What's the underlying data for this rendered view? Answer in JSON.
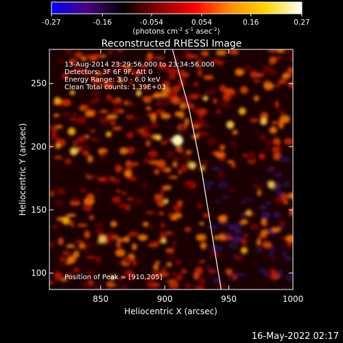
{
  "colorbar": {
    "ticks": [
      "-0.27",
      "-0.16",
      "-0.054",
      "0.054",
      "0.16",
      "0.27"
    ],
    "tick_values": [
      -0.27,
      -0.16,
      -0.054,
      0.054,
      0.16,
      0.27
    ],
    "range": [
      -0.27,
      0.27
    ],
    "units_prefix": "(photons cm",
    "units_exp1": "-2",
    "units_mid": " s",
    "units_exp2": "-1",
    "units_mid2": " asec",
    "units_exp3": "-2",
    "units_suffix": ")",
    "colors": [
      "#0000ff",
      "#4b0082",
      "#000000",
      "#8b0000",
      "#ff0000",
      "#ff8c00",
      "#ffd700",
      "#ffffff"
    ]
  },
  "chart_data": {
    "type": "heatmap",
    "title": "Reconstructed RHESSI Image",
    "xlabel": "Heliocentric X (arcsec)",
    "ylabel": "Heliocentric Y (arcsec)",
    "xlim": [
      810,
      1000
    ],
    "ylim": [
      87,
      277
    ],
    "xticks": [
      850,
      900,
      950,
      1000
    ],
    "yticks": [
      100,
      150,
      200,
      250
    ],
    "peak": [
      910,
      205
    ],
    "peak_value": 0.27,
    "limb_curve": [
      [
        906,
        277
      ],
      [
        919,
        230
      ],
      [
        929,
        180
      ],
      [
        937,
        130
      ],
      [
        944,
        87
      ]
    ],
    "annotations": [
      "13-Aug-2014 23:29:56.000 to 23:34:56.000",
      "Detectors: 3F 6F 9F, Att 0",
      "Energy Range: 3.0 - 6.0 keV",
      "Clean    Total counts: 1.39E+03",
      "Position of Peak = [910,205]"
    ]
  },
  "footer": {
    "date": "16-May-2022 02:17"
  }
}
